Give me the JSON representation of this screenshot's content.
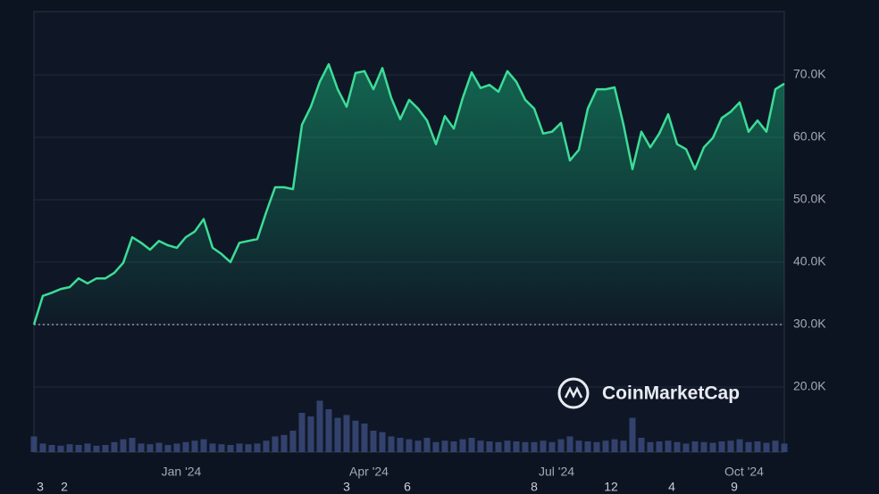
{
  "chart_data": {
    "type": "area",
    "watermark": "CoinMarketCap",
    "color": "#3ddc97",
    "grid": true,
    "xlim": [
      0,
      84
    ],
    "xticks": [
      {
        "value": 16.5,
        "label": "Jan '24"
      },
      {
        "value": 37.5,
        "label": "Apr '24"
      },
      {
        "value": 58.5,
        "label": "Jul '24"
      },
      {
        "value": 79.5,
        "label": "Oct '24"
      }
    ],
    "x_minor_ticks": [
      {
        "value": 0.7,
        "label": "3"
      },
      {
        "value": 3.4,
        "label": "2"
      },
      {
        "value": 35,
        "label": "3"
      },
      {
        "value": 41.8,
        "label": "6"
      },
      {
        "value": 56,
        "label": "8"
      },
      {
        "value": 64.6,
        "label": "12"
      },
      {
        "value": 71.4,
        "label": "4"
      },
      {
        "value": 78.4,
        "label": "9"
      }
    ],
    "ylim": [
      9570,
      80140
    ],
    "yticks": [
      {
        "value": 20000,
        "label": "20.0K"
      },
      {
        "value": 30000,
        "label": "30.0K"
      },
      {
        "value": 40000,
        "label": "40.0K"
      },
      {
        "value": 50000,
        "label": "50.0K"
      },
      {
        "value": 60000,
        "label": "60.0K"
      },
      {
        "value": 70000,
        "label": "70.0K"
      }
    ],
    "reference_line": 30000,
    "values": [
      30000,
      34600,
      35100,
      35700,
      36000,
      37400,
      36600,
      37400,
      37400,
      38300,
      39900,
      44000,
      43100,
      42000,
      43400,
      42700,
      42300,
      44000,
      44900,
      46900,
      42300,
      41300,
      40000,
      43100,
      43400,
      43700,
      48000,
      52000,
      52000,
      51700,
      62000,
      64900,
      68900,
      71700,
      67700,
      64900,
      70300,
      70600,
      67700,
      71100,
      66300,
      62900,
      66000,
      64600,
      62700,
      58900,
      63400,
      61400,
      66300,
      70400,
      67900,
      68400,
      67300,
      70600,
      68900,
      66000,
      64600,
      60600,
      60900,
      62300,
      56300,
      58000,
      64600,
      67700,
      67700,
      68000,
      62000,
      54900,
      60900,
      58400,
      60600,
      63700,
      58900,
      58100,
      54900,
      58400,
      59900,
      63100,
      64100,
      65600,
      60900,
      62700,
      60900,
      67700,
      68600
    ],
    "volume_lim": [
      0,
      100
    ],
    "volume": [
      22,
      12,
      10,
      9,
      11,
      10,
      12,
      9,
      10,
      14,
      18,
      20,
      12,
      11,
      13,
      10,
      12,
      14,
      16,
      18,
      12,
      11,
      10,
      12,
      11,
      12,
      16,
      22,
      24,
      30,
      55,
      50,
      72,
      60,
      48,
      52,
      44,
      40,
      30,
      28,
      22,
      20,
      18,
      16,
      20,
      14,
      16,
      15,
      18,
      20,
      16,
      15,
      14,
      16,
      15,
      14,
      14,
      16,
      14,
      18,
      22,
      16,
      15,
      14,
      16,
      18,
      16,
      48,
      20,
      14,
      15,
      16,
      14,
      12,
      15,
      14,
      13,
      15,
      16,
      18,
      14,
      15,
      13,
      16,
      12
    ]
  }
}
